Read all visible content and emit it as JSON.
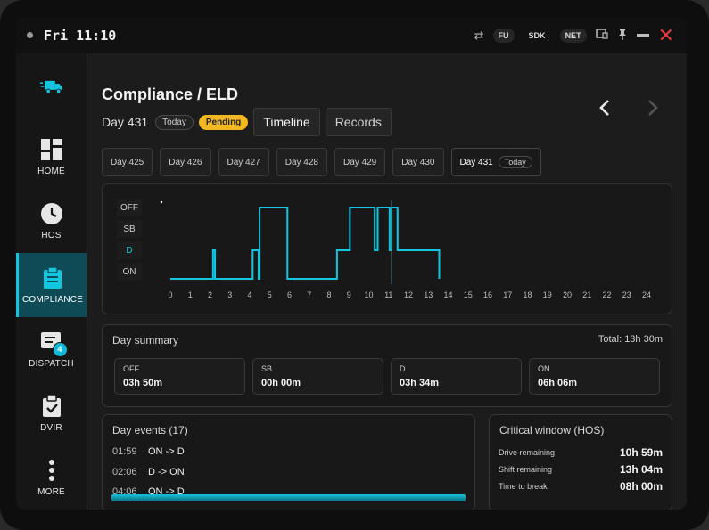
{
  "statusbar": {
    "clock": "Fri 11:10",
    "chips": [
      "FU",
      "SDK",
      "NET"
    ]
  },
  "sidebar": {
    "items": [
      {
        "label": "",
        "icon": "truck-icon"
      },
      {
        "label": "HOME",
        "icon": "dashboard-icon"
      },
      {
        "label": "HOS",
        "icon": "clock-icon"
      },
      {
        "label": "COMPLIANCE",
        "icon": "clipboard-icon",
        "active": true
      },
      {
        "label": "DISPATCH",
        "icon": "message-icon",
        "badge": "4"
      },
      {
        "label": "DVIR",
        "icon": "checklist-icon"
      },
      {
        "label": "MORE",
        "icon": "more-icon"
      }
    ]
  },
  "header": {
    "title": "Compliance / ELD",
    "day_label": "Day 431",
    "today_pill": "Today",
    "status_pill": "Pending",
    "tabs": [
      "Timeline",
      "Records"
    ]
  },
  "day_tabs": [
    {
      "label": "Day 425"
    },
    {
      "label": "Day 426"
    },
    {
      "label": "Day 427"
    },
    {
      "label": "Day 428"
    },
    {
      "label": "Day 429"
    },
    {
      "label": "Day 430"
    },
    {
      "label": "Day 431",
      "pill": "Today",
      "active": true
    }
  ],
  "timeline": {
    "status_labels": [
      "OFF",
      "SB",
      "D",
      "ON"
    ],
    "hours": [
      "0",
      "1",
      "2",
      "3",
      "4",
      "5",
      "6",
      "7",
      "8",
      "9",
      "10",
      "11",
      "12",
      "13",
      "14",
      "15",
      "16",
      "17",
      "18",
      "19",
      "20",
      "21",
      "22",
      "23",
      "24"
    ],
    "accent": "#12c6e0",
    "now_hour": 11.15,
    "segments": [
      [
        0,
        "ON"
      ],
      [
        2.0,
        "ON"
      ],
      [
        2.15,
        "D"
      ],
      [
        2.25,
        "ON"
      ],
      [
        4.0,
        "ON"
      ],
      [
        4.15,
        "D"
      ],
      [
        4.4,
        "D"
      ],
      [
        4.45,
        "ON"
      ],
      [
        4.5,
        "OFF"
      ],
      [
        5.85,
        "OFF"
      ],
      [
        5.9,
        "ON"
      ],
      [
        8.3,
        "ON"
      ],
      [
        8.4,
        "D"
      ],
      [
        9.0,
        "D"
      ],
      [
        9.05,
        "OFF"
      ],
      [
        10.2,
        "OFF"
      ],
      [
        10.3,
        "D"
      ],
      [
        10.4,
        "D"
      ],
      [
        10.45,
        "OFF"
      ],
      [
        11.0,
        "OFF"
      ],
      [
        11.05,
        "D"
      ],
      [
        11.15,
        "OFF"
      ],
      [
        11.3,
        "OFF"
      ],
      [
        11.45,
        "D"
      ],
      [
        13.4,
        "D"
      ],
      [
        13.55,
        "ON"
      ]
    ]
  },
  "summary": {
    "title": "Day summary",
    "total": "Total: 13h 30m",
    "cards": [
      {
        "k": "OFF",
        "v": "03h 50m"
      },
      {
        "k": "SB",
        "v": "00h 00m"
      },
      {
        "k": "D",
        "v": "03h 34m"
      },
      {
        "k": "ON",
        "v": "06h 06m"
      }
    ]
  },
  "events": {
    "title": "Day events (17)",
    "rows": [
      {
        "t": "01:59",
        "e": "ON -> D"
      },
      {
        "t": "02:06",
        "e": "D -> ON"
      },
      {
        "t": "04:06",
        "e": "ON -> D"
      }
    ]
  },
  "critical": {
    "title": "Critical window (HOS)",
    "rows": [
      {
        "k": "Drive remaining",
        "v": "10h 59m"
      },
      {
        "k": "Shift remaining",
        "v": "13h 04m"
      },
      {
        "k": "Time to break",
        "v": "08h 00m"
      }
    ]
  }
}
